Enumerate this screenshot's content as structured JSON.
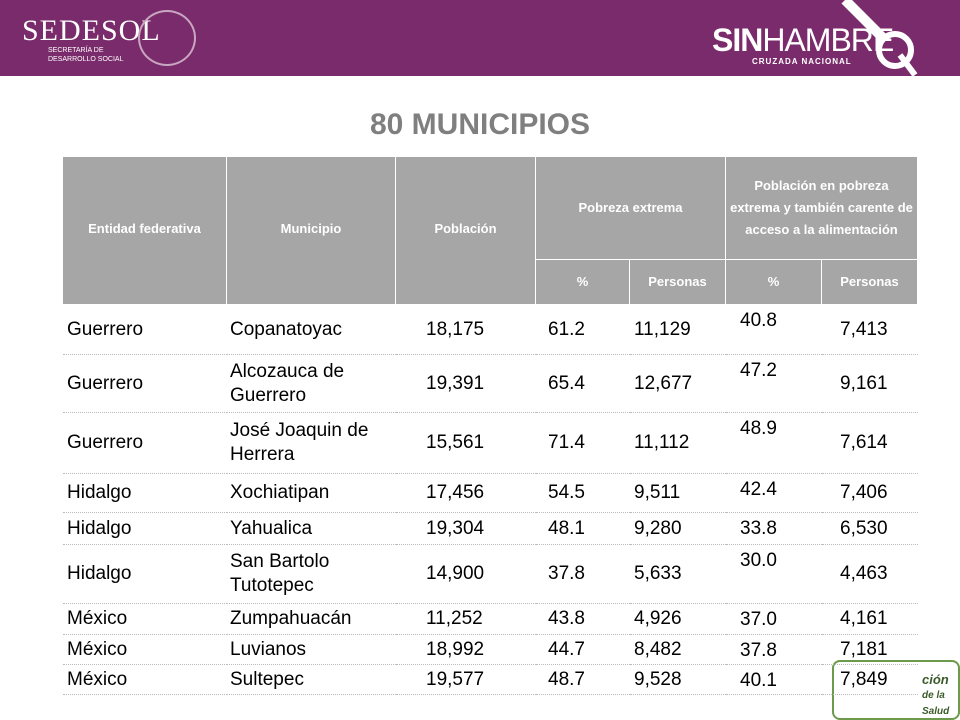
{
  "header": {
    "brand": "SEDESOL",
    "brand_sub": [
      "SECRETARÍA DE",
      "DESARROLLO SOCIAL"
    ],
    "campaign_sin": "SIN",
    "campaign_hambre": "HAMBRE",
    "campaign_sub": "CRUZADA NACIONAL"
  },
  "title": "80 MUNICIPIOS",
  "table": {
    "header_top": [
      "Entidad federativa",
      "Municipio",
      "Población",
      "Pobreza extrema",
      "Población en pobreza extrema y también carente de acceso a la alimentación"
    ],
    "header_sub": [
      "%",
      "Personas",
      "%",
      "Personas"
    ],
    "rows": [
      [
        "Guerrero",
        "Copanatoyac",
        "18,175",
        "61.2",
        "11,129",
        "40.8",
        "7,413"
      ],
      [
        "Guerrero",
        "Alcozauca de Guerrero",
        "19,391",
        "65.4",
        "12,677",
        "47.2",
        "9,161"
      ],
      [
        "Guerrero",
        "José Joaquin de Herrera",
        "15,561",
        "71.4",
        "11,112",
        "48.9",
        "7,614"
      ],
      [
        "Hidalgo",
        "Xochiatipan",
        "17,456",
        "54.5",
        "9,511",
        "42.4",
        "7,406"
      ],
      [
        "Hidalgo",
        "Yahualica",
        "19,304",
        "48.1",
        "9,280",
        "33.8",
        "6,530"
      ],
      [
        "Hidalgo",
        "San Bartolo Tutotepec",
        "14,900",
        "37.8",
        "5,633",
        "30.0",
        "4,463"
      ],
      [
        "México",
        "Zumpahuacán",
        "11,252",
        "43.8",
        "4,926",
        "37.0",
        "4,161"
      ],
      [
        "México",
        "Luvianos",
        "18,992",
        "44.7",
        "8,482",
        "37.8",
        "7,181"
      ],
      [
        "México",
        "Sultepec",
        "19,577",
        "48.7",
        "9,528",
        "40.1",
        "7,849"
      ]
    ]
  },
  "footer_logo": [
    "ción",
    "de la Salud"
  ]
}
